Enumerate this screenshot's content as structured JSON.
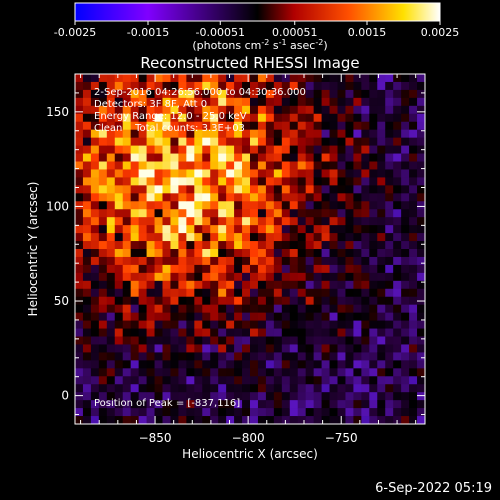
{
  "chart_data": {
    "type": "heatmap",
    "title": "Reconstructed RHESSI Image",
    "xlabel": "Heliocentric X (arcsec)",
    "ylabel": "Heliocentric Y (arcsec)",
    "xlim": [
      -893,
      -705
    ],
    "ylim": [
      -15,
      170
    ],
    "xticks": [
      -850,
      -800,
      -750
    ],
    "yticks": [
      0,
      50,
      100,
      150
    ],
    "colorbar": {
      "range": [
        -0.0025,
        0.0025
      ],
      "ticks": [
        "-0.0025",
        "-0.0015",
        "-0.00051",
        "0.00051",
        "0.0015",
        "0.0025"
      ],
      "units_prefix": "(photons cm",
      "units_exp1": "-2",
      "units_mid": " s",
      "units_exp2": "-1",
      "units_mid2": " asec",
      "units_exp3": "-2",
      "units_suffix": ")",
      "colors": [
        "#0000ff",
        "#a000ff",
        "#000000",
        "#ff0000",
        "#ffff00",
        "#ffffff"
      ]
    },
    "peak": {
      "x": -837,
      "y": 116
    },
    "annotations": {
      "time_range": "2-Sep-2016 04:26:56.000 to 04:30:36.000",
      "detectors": "Detectors: 3F 8F, Att 0",
      "energy": "Energy Range: 12.0 - 25.0 keV",
      "method": "Clean    Total counts: 3.3E+03",
      "peak_label": "Position of Peak = [-837,116]"
    }
  },
  "footer": {
    "timestamp": "6-Sep-2022 05:19"
  }
}
